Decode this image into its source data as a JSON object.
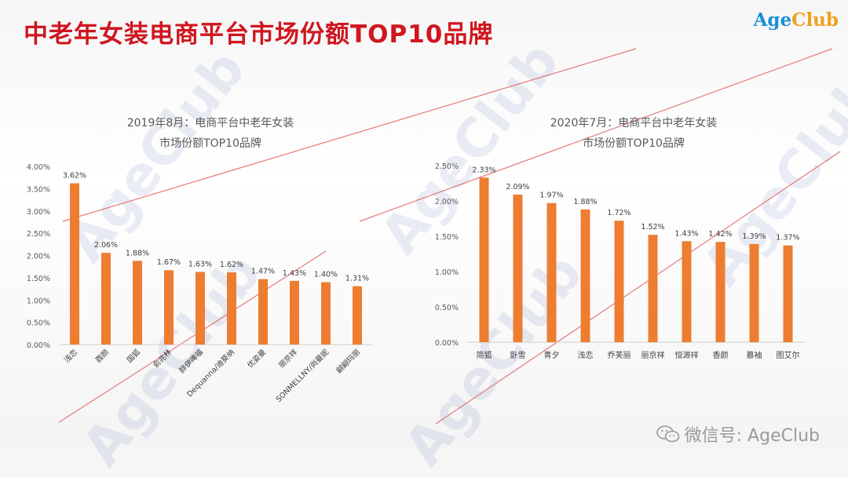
{
  "page_title": "中老年女装电商平台市场份额TOP10品牌",
  "logo": {
    "part1": "Age",
    "part2": "Club"
  },
  "watermark": "AgeClub",
  "wechat": {
    "label": "微信号: AgeClub",
    "icon": "wechat-icon"
  },
  "colors": {
    "bar": "#ed7d31",
    "title": "#d0161f",
    "axis": "#595959",
    "diagonal": "#e25a5a"
  },
  "chart_data": [
    {
      "type": "bar",
      "title_line1": "2019年8月：电商平台中老年女装",
      "title_line2": "市场份额TOP10品牌",
      "categories": [
        "浅恋",
        "酉颜",
        "国狐",
        "俞兆林",
        "醉伊啤福",
        "Dequanna/迪葵纳",
        "优姿曼",
        "丽京祥",
        "SONMELLNY/尚曼妮",
        "翩翩玛丽"
      ],
      "values": [
        3.62,
        2.06,
        1.88,
        1.67,
        1.63,
        1.62,
        1.47,
        1.43,
        1.4,
        1.31
      ],
      "value_labels": [
        "3.62%",
        "2.06%",
        "1.88%",
        "1.67%",
        "1.63%",
        "1.62%",
        "1.47%",
        "1.43%",
        "1.40%",
        "1.31%"
      ],
      "y_ticks": [
        "0.00%",
        "0.50%",
        "1.00%",
        "1.50%",
        "2.00%",
        "2.50%",
        "3.00%",
        "3.50%",
        "4.00%"
      ],
      "ylim": [
        0,
        4.0
      ],
      "grid": false
    },
    {
      "type": "bar",
      "title_line1": "2020年7月：电商平台中老年女装",
      "title_line2": "市场份额TOP10品牌",
      "categories": [
        "简狐",
        "卧雪",
        "青夕",
        "浅恋",
        "乔芙丽",
        "丽京祥",
        "恒源祥",
        "香颜",
        "慕袖",
        "图艾尔"
      ],
      "values": [
        2.33,
        2.09,
        1.97,
        1.88,
        1.72,
        1.52,
        1.43,
        1.42,
        1.39,
        1.37
      ],
      "value_labels": [
        "2.33%",
        "2.09%",
        "1.97%",
        "1.88%",
        "1.72%",
        "1.52%",
        "1.43%",
        "1.42%",
        "1.39%",
        "1.37%"
      ],
      "y_ticks": [
        "0.00%",
        "0.50%",
        "1.00%",
        "1.50%",
        "2.00%",
        "2.50%"
      ],
      "ylim": [
        0,
        2.5
      ],
      "grid": false
    }
  ]
}
